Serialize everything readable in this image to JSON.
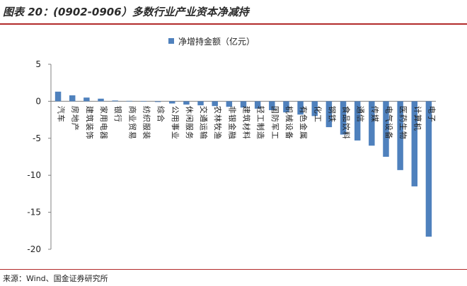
{
  "header": {
    "title": "图表 20：(0902-0906）多数行业产业资本净减持"
  },
  "footer": {
    "source": "来源：Wind、国金证券研究所"
  },
  "colors": {
    "bar": "#4f81bd",
    "axis": "#808080",
    "title_rule": "#b22a2a"
  },
  "chart_data": {
    "type": "bar",
    "title": "",
    "xlabel": "",
    "ylabel": "",
    "ylim": [
      -20,
      5
    ],
    "yticks": [
      5,
      0,
      -5,
      -10,
      -15,
      -20
    ],
    "grid": false,
    "legend_position": "top-center",
    "series": [
      {
        "name": "净增持金额（亿元）",
        "values": [
          1.3,
          0.8,
          0.5,
          0.35,
          0.1,
          0.05,
          0.03,
          -0.1,
          -0.3,
          -0.45,
          -0.55,
          -0.65,
          -0.75,
          -0.85,
          -1.0,
          -1.2,
          -1.5,
          -1.8,
          -2.0,
          -3.5,
          -4.5,
          -5.3,
          -6.0,
          -7.5,
          -9.3,
          -11.5,
          -18.3
        ]
      }
    ],
    "categories": [
      "汽车",
      "房地产",
      "建筑装饰",
      "家用电器",
      "银行",
      "商业贸易",
      "纺织服装",
      "综合",
      "公用事业",
      "休闲服务",
      "交通运输",
      "农林牧渔",
      "非银金融",
      "建筑材料",
      "轻工制造",
      "国防军工",
      "机械设备",
      "有色金属",
      "化工",
      "钢铁",
      "食品饮料",
      "通信",
      "传媒",
      "电气设备",
      "医药生物",
      "计算机",
      "电子"
    ]
  }
}
